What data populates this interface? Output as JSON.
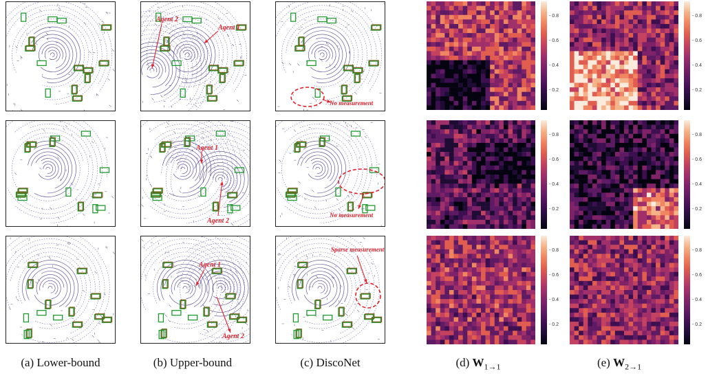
{
  "captions": [
    {
      "letter": "(a)",
      "text": "Lower-bound"
    },
    {
      "letter": "(b)",
      "text": "Upper-bound"
    },
    {
      "letter": "(c)",
      "text": "DiscoNet"
    },
    {
      "letter": "(d)",
      "symbol": "W",
      "sub": "1→1"
    },
    {
      "letter": "(e)",
      "symbol": "W",
      "sub": "2→1"
    }
  ],
  "annotations": {
    "row1_b_agent2": "Agent 2",
    "row1_b_agent1": "Agent 1",
    "row1_c": "No measurement",
    "row2_b_agent1": "Agent 1",
    "row2_b_agent2": "Agent 2",
    "row2_c": "No measurement",
    "row3_b_agent1": "Agent 1",
    "row3_b_agent2": "Agent 2",
    "row3_c": "Sparse measurement"
  },
  "colorbar_ticks": [
    "0.8",
    "0.6",
    "0.4",
    "0.2"
  ],
  "colors": {
    "box_green": "#1e9b2e",
    "box_brown": "#7a5a1a",
    "lidar": "#3b2a8a",
    "annotation_red": "#e5202a"
  }
}
